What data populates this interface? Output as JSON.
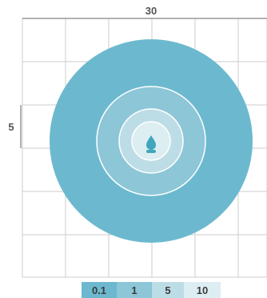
{
  "scale": {
    "width_label": "30",
    "height_label": "5"
  },
  "legend": [
    {
      "label": "0.1",
      "color": "#6cb9cf"
    },
    {
      "label": "1",
      "color": "#8cc6d7"
    },
    {
      "label": "5",
      "color": "#bddde6"
    },
    {
      "label": "10",
      "color": "#ddeef2"
    }
  ],
  "zones": [
    {
      "name": "outer",
      "color": "#6cb9cf"
    },
    {
      "name": "second",
      "color": "#8cc6d7"
    },
    {
      "name": "third",
      "color": "#bddde6"
    },
    {
      "name": "inner",
      "color": "#ddeef2"
    }
  ],
  "icon": {
    "name": "water-drop-icon",
    "color": "#40a6be"
  }
}
